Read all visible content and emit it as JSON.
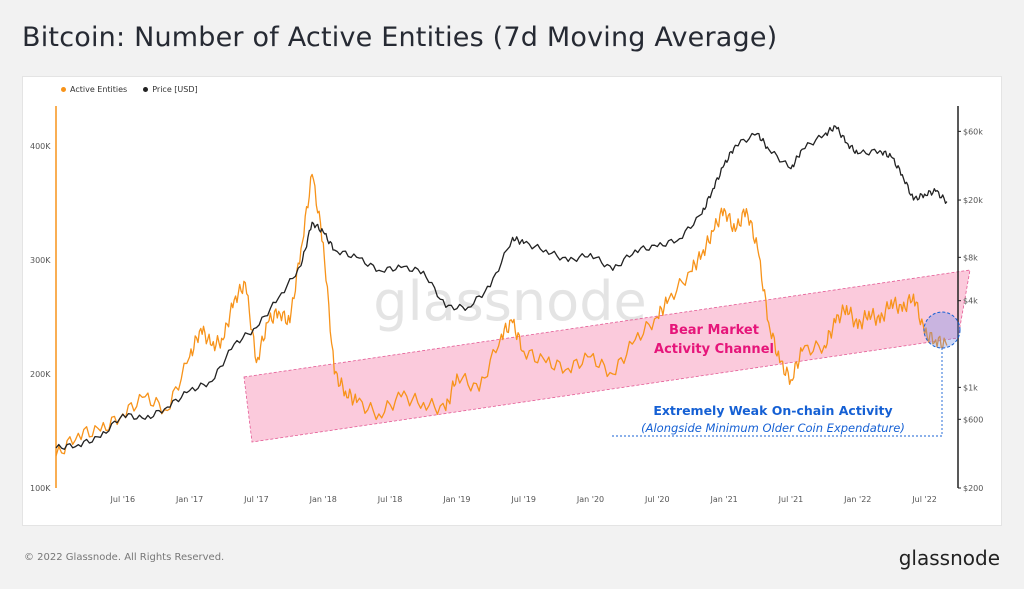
{
  "title": "Bitcoin: Number of Active Entities (7d Moving Average)",
  "footer": {
    "copyright": "© 2022 Glassnode. All Rights Reserved.",
    "brand": "glassnode"
  },
  "watermark": "glassnode",
  "colors": {
    "active_entities": "#f7931a",
    "price": "#222222",
    "channel_fill": "#f9b8d0",
    "channel_edge": "#e35a94",
    "bear_text": "#e6157a",
    "weak_text": "#1560d4"
  },
  "chart_data": {
    "type": "line",
    "title": "Bitcoin: Number of Active Entities (7d Moving Average)",
    "legend": [
      {
        "name": "Active Entities",
        "color": "#f7931a"
      },
      {
        "name": "Price [USD]",
        "color": "#222222"
      }
    ],
    "legend_position": "top-left",
    "x_ticks": [
      "Jul '16",
      "Jan '17",
      "Jul '17",
      "Jan '18",
      "Jul '18",
      "Jan '19",
      "Jul '19",
      "Jan '20",
      "Jul '20",
      "Jan '21",
      "Jul '21",
      "Jan '22",
      "Jul '22"
    ],
    "y_left": {
      "scale": "linear",
      "ticks": [
        "100K",
        "200K",
        "300K",
        "400K"
      ],
      "range": [
        100000,
        435000
      ]
    },
    "y_right": {
      "scale": "log",
      "ticks": [
        "$200",
        "$600",
        "$1k",
        "$4k",
        "$8k",
        "$20k",
        "$60k"
      ],
      "range": [
        200,
        90000
      ]
    },
    "x_range": [
      "2016-01",
      "2022-09"
    ],
    "series": [
      {
        "name": "Active Entities",
        "axis": "left",
        "x": [
          "2016-01",
          "2016-03",
          "2016-05",
          "2016-07",
          "2016-09",
          "2016-11",
          "2017-01",
          "2017-02",
          "2017-03",
          "2017-04",
          "2017-05",
          "2017-06",
          "2017-07",
          "2017-08",
          "2017-09",
          "2017-10",
          "2017-11",
          "2017-12",
          "2018-01",
          "2018-02",
          "2018-03",
          "2018-04",
          "2018-06",
          "2018-08",
          "2018-10",
          "2018-12",
          "2019-01",
          "2019-03",
          "2019-05",
          "2019-06",
          "2019-07",
          "2019-09",
          "2019-11",
          "2020-01",
          "2020-03",
          "2020-05",
          "2020-07",
          "2020-08",
          "2020-10",
          "2020-11",
          "2020-12",
          "2021-01",
          "2021-02",
          "2021-03",
          "2021-04",
          "2021-05",
          "2021-06",
          "2021-07",
          "2021-08",
          "2021-10",
          "2021-11",
          "2021-12",
          "2022-01",
          "2022-02",
          "2022-03",
          "2022-04",
          "2022-05",
          "2022-06",
          "2022-07",
          "2022-08",
          "2022-09"
        ],
        "values": [
          128000,
          148000,
          150000,
          165000,
          180000,
          168000,
          215000,
          240000,
          225000,
          230000,
          265000,
          280000,
          210000,
          245000,
          255000,
          245000,
          310000,
          375000,
          315000,
          200000,
          185000,
          175000,
          165000,
          180000,
          175000,
          168000,
          200000,
          185000,
          235000,
          245000,
          220000,
          210000,
          205000,
          215000,
          200000,
          230000,
          250000,
          265000,
          290000,
          305000,
          325000,
          345000,
          325000,
          345000,
          310000,
          245000,
          210000,
          195000,
          220000,
          225000,
          245000,
          260000,
          240000,
          255000,
          245000,
          265000,
          255000,
          270000,
          235000,
          230000,
          225000
        ]
      },
      {
        "name": "Price [USD]",
        "axis": "right",
        "x": [
          "2016-01",
          "2016-03",
          "2016-05",
          "2016-07",
          "2016-09",
          "2016-11",
          "2017-01",
          "2017-03",
          "2017-05",
          "2017-07",
          "2017-09",
          "2017-11",
          "2017-12",
          "2018-01",
          "2018-02",
          "2018-04",
          "2018-06",
          "2018-08",
          "2018-10",
          "2018-12",
          "2019-02",
          "2019-04",
          "2019-06",
          "2019-07",
          "2019-09",
          "2019-11",
          "2020-01",
          "2020-03",
          "2020-05",
          "2020-07",
          "2020-09",
          "2020-11",
          "2020-12",
          "2021-01",
          "2021-02",
          "2021-04",
          "2021-05",
          "2021-07",
          "2021-08",
          "2021-10",
          "2021-11",
          "2021-12",
          "2022-01",
          "2022-03",
          "2022-04",
          "2022-05",
          "2022-06",
          "2022-07",
          "2022-08",
          "2022-09"
        ],
        "values": [
          380,
          400,
          450,
          650,
          600,
          730,
          950,
          1100,
          2000,
          2600,
          4200,
          7000,
          14000,
          12000,
          9000,
          8000,
          6500,
          6800,
          6400,
          3600,
          3600,
          5000,
          11000,
          10000,
          9000,
          7500,
          8500,
          6500,
          9000,
          9500,
          10800,
          16000,
          24000,
          35000,
          48000,
          58000,
          45000,
          33000,
          45000,
          57000,
          65000,
          50000,
          42000,
          44000,
          40000,
          30000,
          20000,
          22000,
          23000,
          19500
        ]
      }
    ]
  },
  "annotations": {
    "bear_market_line1": "Bear Market",
    "bear_market_line2": "Activity Channel",
    "weak_activity": "Extremely Weak On-chain Activity",
    "weak_activity_sub": "(Alongside Minimum Older Coin Expendature)"
  }
}
